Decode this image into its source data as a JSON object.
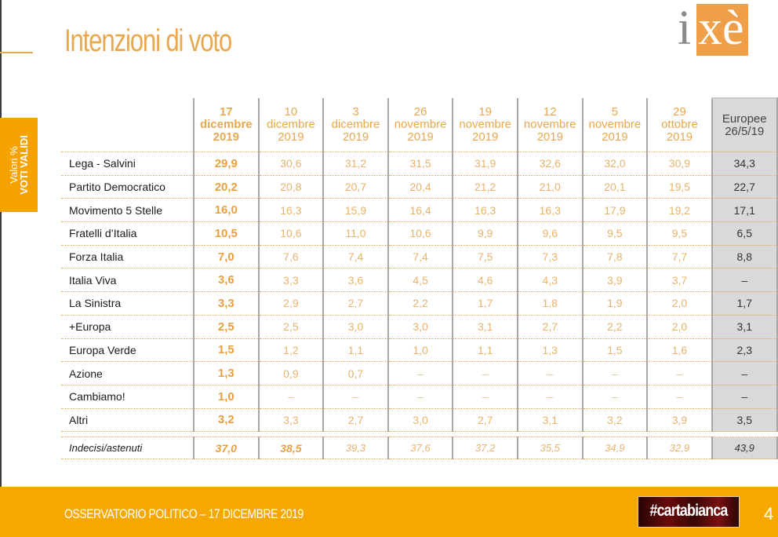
{
  "title": "Intenzioni di voto",
  "logo": {
    "letter_i": "i",
    "letters_xe": "xè"
  },
  "side_tab": {
    "line1": "Valori %",
    "line2": "VOTI VALIDI"
  },
  "columns": [
    {
      "day": "17",
      "month": "dicembre",
      "year": "2019"
    },
    {
      "day": "10",
      "month": "dicembre",
      "year": "2019"
    },
    {
      "day": "3",
      "month": "dicembre",
      "year": "2019"
    },
    {
      "day": "26",
      "month": "novembre",
      "year": "2019"
    },
    {
      "day": "19",
      "month": "novembre",
      "year": "2019"
    },
    {
      "day": "12",
      "month": "novembre",
      "year": "2019"
    },
    {
      "day": "5",
      "month": "novembre",
      "year": "2019"
    },
    {
      "day": "29",
      "month": "ottobre",
      "year": "2019"
    },
    {
      "day": "Europee",
      "month": "26/5/19",
      "year": ""
    }
  ],
  "rows": [
    {
      "party": "Lega - Salvini",
      "values": [
        "29,9",
        "30,6",
        "31,2",
        "31,5",
        "31,9",
        "32,6",
        "32,0",
        "30,9",
        "34,3"
      ]
    },
    {
      "party": "Partito Democratico",
      "values": [
        "20,2",
        "20,8",
        "20,7",
        "20,4",
        "21,2",
        "21,0",
        "20,1",
        "19,5",
        "22,7"
      ]
    },
    {
      "party": "Movimento 5 Stelle",
      "values": [
        "16,0",
        "16,3",
        "15,9",
        "16,4",
        "16,3",
        "16,3",
        "17,9",
        "19,2",
        "17,1"
      ]
    },
    {
      "party": "Fratelli d’Italia",
      "values": [
        "10,5",
        "10,6",
        "11,0",
        "10,6",
        "9,9",
        "9,6",
        "9,5",
        "9,5",
        "6,5"
      ]
    },
    {
      "party": "Forza Italia",
      "values": [
        "7,0",
        "7,6",
        "7,4",
        "7,4",
        "7,5",
        "7,3",
        "7,8",
        "7,7",
        "8,8"
      ]
    },
    {
      "party": "Italia Viva",
      "values": [
        "3,6",
        "3,3",
        "3,6",
        "4,5",
        "4,6",
        "4,3",
        "3,9",
        "3,7",
        "–"
      ]
    },
    {
      "party": "La Sinistra",
      "values": [
        "3,3",
        "2,9",
        "2,7",
        "2,2",
        "1,7",
        "1,8",
        "1,9",
        "2,0",
        "1,7"
      ]
    },
    {
      "party": "+Europa",
      "values": [
        "2,5",
        "2,5",
        "3,0",
        "3,0",
        "3,1",
        "2,7",
        "2,2",
        "2,0",
        "3,1"
      ]
    },
    {
      "party": "Europa Verde",
      "values": [
        "1,5",
        "1,2",
        "1,1",
        "1,0",
        "1,1",
        "1,3",
        "1,5",
        "1,6",
        "2,3"
      ]
    },
    {
      "party": "Azione",
      "values": [
        "1,3",
        "0,9",
        "0,7",
        "–",
        "–",
        "–",
        "–",
        "–",
        "–"
      ]
    },
    {
      "party": "Cambiamo!",
      "values": [
        "1,0",
        "–",
        "–",
        "–",
        "–",
        "–",
        "–",
        "–",
        "–"
      ]
    },
    {
      "party": "Altri",
      "values": [
        "3,2",
        "3,3",
        "2,7",
        "3,0",
        "2,7",
        "3,1",
        "3,2",
        "3,9",
        "3,5"
      ]
    }
  ],
  "undecided": {
    "label": "Indecisi/astenuti",
    "values": [
      "37,0",
      "38,5",
      "39,3",
      "37,6",
      "37,2",
      "35,5",
      "34,9",
      "32,9",
      "43,9"
    ]
  },
  "footer": {
    "text": "OSSERVATORIO POLITICO – 17 DICEMBRE 2019",
    "badge": "#cartabianca",
    "page_number": "4"
  }
}
